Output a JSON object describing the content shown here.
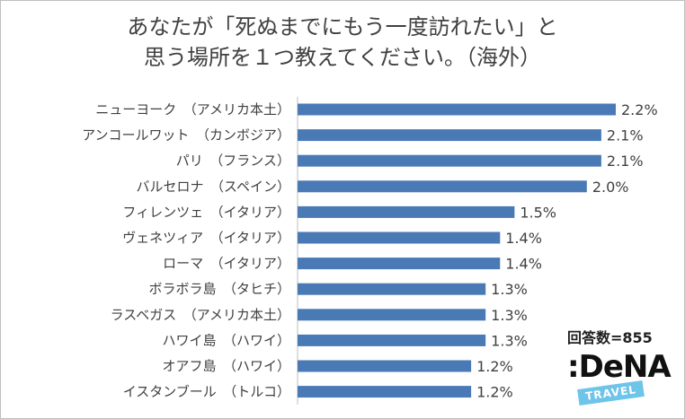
{
  "header": {
    "title_line1": "あなたが「死ぬまでにもう一度訪れたい」と",
    "title_line2": "思う場所を１つ教えてください。（海外）"
  },
  "sample": "回答数=855",
  "logo": {
    "main": ":DeNA",
    "tag": "TRAVEL"
  },
  "colors": {
    "bar": "#4a7ab5",
    "text": "#404040"
  },
  "chart_data": {
    "type": "bar",
    "orientation": "horizontal",
    "title": "あなたが「死ぬまでにもう一度訪れたい」と思う場所を１つ教えてください。（海外）",
    "xlabel": "",
    "ylabel": "",
    "xlim": [
      0,
      2.2
    ],
    "grid": false,
    "categories": [
      "ニューヨーク　（アメリカ本土）",
      "アンコールワット　（カンボジア）",
      "パリ　（フランス）",
      "バルセロナ　（スペイン）",
      "フィレンツェ　（イタリア）",
      "ヴェネツィア　（イタリア）",
      "ローマ　（イタリア）",
      "ボラボラ島　（タヒチ）",
      "ラスベガス　（アメリカ本土）",
      "ハワイ島　（ハワイ）",
      "オアフ島　（ハワイ）",
      "イスタンブール　（トルコ）"
    ],
    "values": [
      2.2,
      2.1,
      2.1,
      2.0,
      1.5,
      1.4,
      1.4,
      1.3,
      1.3,
      1.3,
      1.2,
      1.2
    ],
    "value_labels": [
      "2.2%",
      "2.1%",
      "2.1%",
      "2.0%",
      "1.5%",
      "1.4%",
      "1.4%",
      "1.3%",
      "1.3%",
      "1.3%",
      "1.2%",
      "1.2%"
    ]
  }
}
